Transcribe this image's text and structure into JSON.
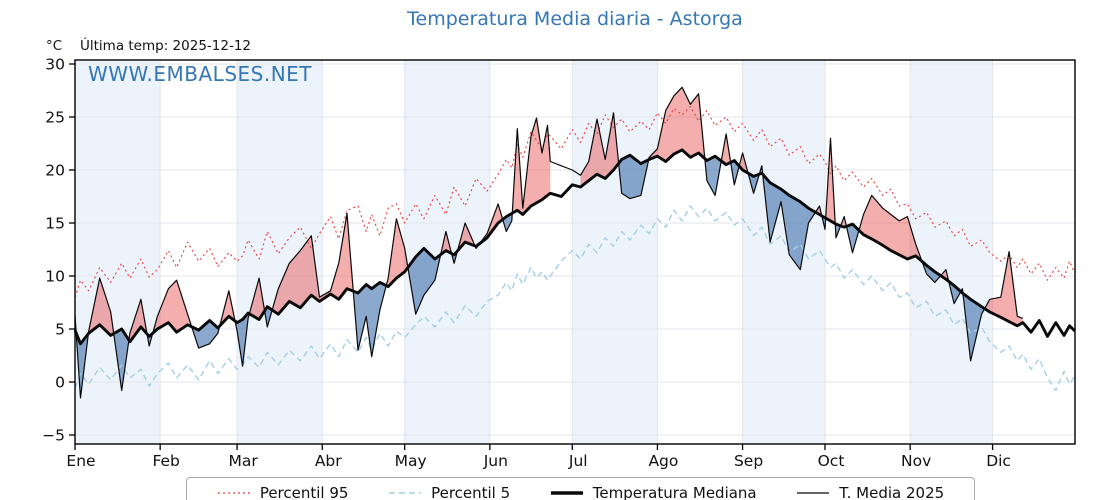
{
  "title": "Temperatura Media diaria - Astorga",
  "units_label": "°C",
  "last_temp_label": "Última temp: 2025-12-12",
  "watermark": "WWW.EMBALSES.NET",
  "colors": {
    "title_blue": "#3577b4",
    "p95_red": "#e53e3e",
    "p5_blue": "#a5cfe6",
    "median_black": "#0a0a0a",
    "t2025_black": "#0a0a0a",
    "fill_above_red": "rgba(231,76,76,0.45)",
    "fill_below_blue": "rgba(62,112,172,0.60)",
    "month_band": "#edf3fa",
    "gridline": "#e2e6ec",
    "spine": "#000000"
  },
  "legend": {
    "items": [
      {
        "label": "Percentil 95",
        "style": "dotted-red"
      },
      {
        "label": "Percentil 5",
        "style": "dashed-lightblue"
      },
      {
        "label": "Temperatura Mediana",
        "style": "thick-black"
      },
      {
        "label": "T. Media 2025",
        "style": "thin-black"
      }
    ]
  },
  "axes": {
    "y_tick_values": [
      30,
      25,
      20,
      15,
      10,
      5,
      0,
      -5
    ],
    "y_tick_labels": [
      "30",
      "25",
      "20",
      "15",
      "10",
      "5",
      "0",
      "−5"
    ],
    "x_month_labels": [
      "Ene",
      "Feb",
      "Mar",
      "Abr",
      "May",
      "Jun",
      "Jul",
      "Ago",
      "Sep",
      "Oct",
      "Nov",
      "Dic"
    ],
    "month_start_days": [
      1,
      32,
      60,
      91,
      121,
      152,
      182,
      213,
      244,
      274,
      305,
      335
    ]
  },
  "chart_data": {
    "type": "line",
    "title": "Temperatura Media diaria - Astorga",
    "xlabel": "",
    "ylabel": "°C",
    "ylim": [
      -5.8,
      30.4
    ],
    "x_unit": "day_of_year_2025",
    "grid": true,
    "legend_position": "bottom",
    "days": [
      1,
      3,
      6,
      10,
      14,
      18,
      21,
      25,
      28,
      31,
      35,
      38,
      42,
      46,
      50,
      53,
      57,
      60,
      62,
      64,
      68,
      71,
      75,
      79,
      83,
      87,
      90,
      94,
      97,
      100,
      104,
      107,
      109,
      112,
      115,
      118,
      121,
      125,
      128,
      132,
      136,
      139,
      143,
      147,
      151,
      155,
      158,
      160,
      162,
      164,
      167,
      169,
      171,
      173,
      174,
      178,
      182,
      185,
      188,
      191,
      194,
      197,
      200,
      203,
      207,
      210,
      213,
      216,
      219,
      222,
      225,
      228,
      231,
      234,
      238,
      241,
      244,
      248,
      251,
      254,
      258,
      261,
      265,
      268,
      272,
      274,
      276,
      278,
      281,
      284,
      288,
      291,
      295,
      298,
      301,
      304,
      307,
      311,
      314,
      318,
      321,
      324,
      327,
      331,
      334,
      338,
      341,
      344,
      346,
      349,
      352,
      355,
      358,
      361,
      363,
      365
    ],
    "series": [
      {
        "name": "Percentil 95",
        "values": [
          8.0,
          9.6,
          8.6,
          10.8,
          9.4,
          11.2,
          9.8,
          11.6,
          9.9,
          10.6,
          12.4,
          10.8,
          13.2,
          11.4,
          12.6,
          10.9,
          12.2,
          11.4,
          11.9,
          13.4,
          11.6,
          14.2,
          12.1,
          13.6,
          14.6,
          12.6,
          14.0,
          15.6,
          13.5,
          16.2,
          16.6,
          14.2,
          15.8,
          13.8,
          16.4,
          16.8,
          15.0,
          16.8,
          15.4,
          17.6,
          15.8,
          18.4,
          16.6,
          19.2,
          18.0,
          19.6,
          21.0,
          20.2,
          22.4,
          21.2,
          23.6,
          22.8,
          22.0,
          23.4,
          23.2,
          22.0,
          23.8,
          22.6,
          24.4,
          23.4,
          25.2,
          24.0,
          24.8,
          23.6,
          24.6,
          23.8,
          25.4,
          24.4,
          25.8,
          25.2,
          26.0,
          24.6,
          25.6,
          24.2,
          25.0,
          23.6,
          24.4,
          22.8,
          23.8,
          22.2,
          23.0,
          21.4,
          22.2,
          20.6,
          21.5,
          20.8,
          19.6,
          20.4,
          19.0,
          19.8,
          18.4,
          19.2,
          17.6,
          18.2,
          16.6,
          16.8,
          15.4,
          16.0,
          14.6,
          15.2,
          13.8,
          14.4,
          12.8,
          13.4,
          12.2,
          11.4,
          12.0,
          10.8,
          11.6,
          10.2,
          11.2,
          9.6,
          10.8,
          9.8,
          11.4,
          10.2
        ]
      },
      {
        "name": "Percentil 5",
        "values": [
          -0.6,
          0.8,
          -0.2,
          1.4,
          0.2,
          1.6,
          0.4,
          1.2,
          -0.4,
          0.8,
          1.8,
          0.4,
          1.6,
          0.2,
          2.0,
          0.8,
          2.2,
          1.2,
          1.6,
          2.4,
          1.4,
          2.8,
          1.6,
          3.0,
          2.0,
          3.4,
          2.2,
          3.6,
          2.4,
          4.0,
          2.8,
          4.2,
          3.0,
          4.6,
          3.4,
          4.8,
          4.2,
          5.4,
          6.2,
          5.2,
          6.6,
          5.6,
          7.2,
          6.2,
          7.6,
          8.2,
          9.4,
          8.6,
          10.2,
          9.2,
          10.8,
          9.8,
          10.4,
          9.6,
          10.0,
          11.4,
          12.4,
          11.6,
          13.0,
          12.2,
          13.6,
          12.8,
          14.2,
          13.4,
          14.8,
          14.0,
          15.4,
          14.6,
          16.2,
          15.2,
          16.6,
          15.6,
          16.4,
          15.2,
          16.0,
          14.8,
          15.4,
          13.8,
          14.6,
          13.0,
          13.8,
          12.2,
          13.0,
          11.6,
          12.4,
          11.6,
          10.8,
          11.2,
          9.8,
          10.6,
          9.2,
          10.0,
          8.6,
          9.4,
          8.0,
          8.4,
          7.0,
          7.6,
          6.2,
          6.8,
          5.4,
          6.0,
          4.6,
          5.2,
          3.8,
          2.8,
          3.4,
          2.0,
          2.6,
          1.2,
          2.2,
          0.4,
          -0.8,
          1.0,
          -0.2,
          0.6
        ]
      },
      {
        "name": "Temperatura Mediana",
        "values": [
          4.9,
          3.6,
          4.6,
          5.4,
          4.4,
          5.0,
          3.8,
          5.2,
          4.3,
          5.0,
          5.6,
          4.7,
          5.4,
          4.9,
          5.8,
          5.1,
          6.2,
          5.6,
          5.9,
          6.5,
          5.9,
          7.1,
          6.4,
          7.6,
          7.0,
          8.2,
          7.6,
          8.3,
          7.8,
          8.8,
          8.4,
          9.2,
          8.8,
          9.4,
          9.0,
          9.8,
          10.4,
          11.8,
          12.6,
          11.6,
          12.4,
          12.0,
          13.2,
          12.8,
          13.6,
          15.0,
          15.6,
          15.9,
          16.2,
          15.8,
          16.6,
          16.9,
          17.2,
          17.6,
          17.8,
          17.5,
          18.6,
          18.4,
          19.0,
          19.6,
          19.2,
          20.0,
          21.0,
          21.4,
          20.6,
          21.0,
          21.3,
          20.8,
          21.5,
          21.9,
          21.2,
          21.6,
          20.9,
          21.3,
          20.5,
          20.9,
          20.0,
          19.4,
          19.7,
          18.8,
          18.2,
          17.6,
          17.0,
          16.4,
          15.8,
          15.5,
          15.2,
          14.9,
          14.6,
          14.9,
          13.9,
          13.5,
          12.9,
          12.4,
          12.0,
          11.6,
          11.9,
          11.0,
          10.4,
          9.7,
          9.1,
          8.4,
          7.8,
          7.1,
          6.6,
          6.1,
          5.7,
          5.3,
          5.6,
          4.7,
          5.8,
          4.3,
          5.6,
          4.4,
          5.3,
          4.8
        ]
      },
      {
        "name": "T. Media 2025",
        "last_day": 346,
        "gap_days": [
          174,
          185
        ],
        "values": [
          6.3,
          -1.5,
          4.8,
          9.8,
          6.6,
          -0.8,
          4.6,
          7.8,
          3.4,
          6.2,
          8.8,
          9.6,
          6.4,
          3.2,
          3.6,
          4.6,
          8.6,
          4.8,
          1.5,
          6.0,
          9.8,
          5.2,
          8.8,
          11.2,
          12.4,
          13.8,
          8.0,
          8.6,
          11.2,
          15.9,
          3.0,
          6.2,
          2.4,
          6.8,
          9.8,
          15.4,
          12.6,
          6.4,
          8.2,
          9.6,
          14.2,
          11.2,
          15.0,
          12.6,
          14.0,
          16.8,
          14.2,
          15.2,
          23.9,
          16.4,
          23.2,
          24.9,
          21.6,
          24.2,
          20.8,
          20.4,
          20.0,
          19.5,
          20.8,
          24.8,
          21.0,
          25.4,
          17.8,
          17.3,
          17.6,
          21.2,
          22.0,
          25.6,
          27.0,
          27.8,
          26.2,
          27.2,
          19.0,
          17.6,
          23.4,
          18.6,
          21.6,
          17.8,
          20.4,
          13.2,
          17.0,
          12.0,
          10.6,
          15.0,
          16.6,
          14.4,
          23.0,
          13.6,
          15.6,
          12.2,
          15.8,
          17.6,
          16.4,
          15.8,
          15.2,
          15.6,
          13.0,
          10.2,
          9.4,
          10.6,
          7.4,
          8.8,
          2.0,
          6.4,
          7.8,
          8.0,
          12.3,
          6.2,
          6.0,
          null,
          null,
          null,
          null,
          null,
          null,
          null
        ]
      }
    ]
  }
}
